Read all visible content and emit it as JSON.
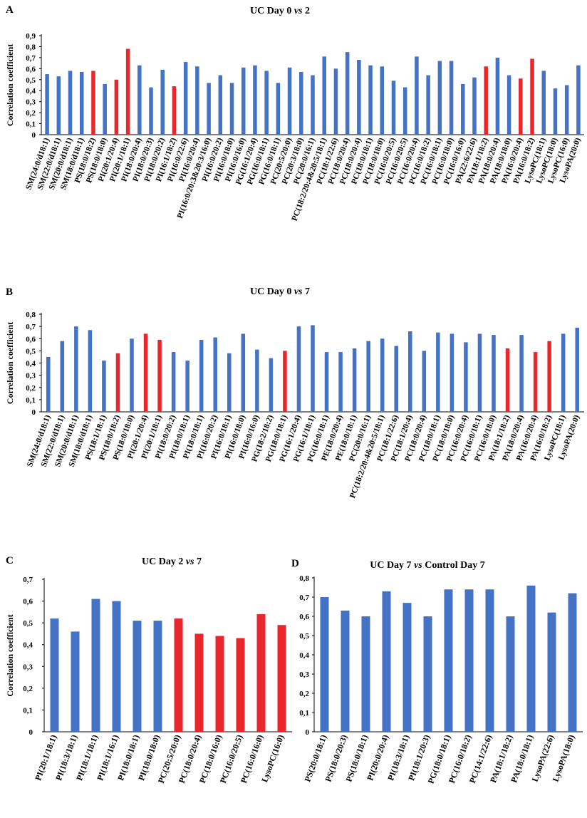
{
  "colors": {
    "blue": "#4472C4",
    "red": "#E8262B",
    "axis": "#000000"
  },
  "chart_data": [
    {
      "panel": "A",
      "type": "bar",
      "title_prefix": "UC Day 0 ",
      "title_vs": "vs",
      "title_suffix": " 2",
      "ylabel": "Correlation coefficient",
      "ylim": [
        0,
        0.9
      ],
      "yticks": [
        "0",
        "0,1",
        "0,2",
        "0,3",
        "0,4",
        "0,5",
        "0,6",
        "0,7",
        "0,8",
        "0,9"
      ],
      "bars": [
        {
          "label": "SM(24:0/d18:1)",
          "value": 0.55,
          "color": "blue"
        },
        {
          "label": "SM(22:0/d18:1)",
          "value": 0.53,
          "color": "blue"
        },
        {
          "label": "SM(20:0/d18:1)",
          "value": 0.58,
          "color": "blue"
        },
        {
          "label": "SM(18:0/d18:1)",
          "value": 0.57,
          "color": "blue"
        },
        {
          "label": "PS(18:0/18:2)",
          "value": 0.58,
          "color": "red"
        },
        {
          "label": "PS(18:0/18:0)",
          "value": 0.46,
          "color": "blue"
        },
        {
          "label": "PI(20:1/20:4)",
          "value": 0.5,
          "color": "red"
        },
        {
          "label": "PI(20:1/18:1)",
          "value": 0.78,
          "color": "red"
        },
        {
          "label": "PI(18:0/20:4)",
          "value": 0.63,
          "color": "blue"
        },
        {
          "label": "PI(18:0/20:3)",
          "value": 0.43,
          "color": "blue"
        },
        {
          "label": "PI(18:0/20:2)",
          "value": 0.59,
          "color": "blue"
        },
        {
          "label": "PI(16:1/18:2)",
          "value": 0.44,
          "color": "red"
        },
        {
          "label": "PI(16:0/22:6)",
          "value": 0.66,
          "color": "blue"
        },
        {
          "label": "PI(16:0/20:4)",
          "value": 0.62,
          "color": "blue"
        },
        {
          "label": "PI(16:0/20:3&20:3/16:0)",
          "value": 0.47,
          "color": "blue"
        },
        {
          "label": "PI(16:0/20:2)",
          "value": 0.54,
          "color": "blue"
        },
        {
          "label": "PI(16:0/18:0)",
          "value": 0.47,
          "color": "blue"
        },
        {
          "label": "PI(16:0/16:0)",
          "value": 0.61,
          "color": "blue"
        },
        {
          "label": "PG(16:1/20:4)",
          "value": 0.63,
          "color": "blue"
        },
        {
          "label": "PG(16:0/18:1)",
          "value": 0.58,
          "color": "blue"
        },
        {
          "label": "PG(16:0/18:1)",
          "value": 0.47,
          "color": "blue"
        },
        {
          "label": "PC(20:5/20:0)",
          "value": 0.61,
          "color": "blue"
        },
        {
          "label": "PC(20:3/18:0)",
          "value": 0.57,
          "color": "blue"
        },
        {
          "label": "PC(20:0/16:1)",
          "value": 0.54,
          "color": "blue"
        },
        {
          "label": "PC(18:2/20:4&20:5/18:1)",
          "value": 0.71,
          "color": "blue"
        },
        {
          "label": "PC(18:1/22:6)",
          "value": 0.6,
          "color": "blue"
        },
        {
          "label": "PC(18:0/20:4)",
          "value": 0.75,
          "color": "blue"
        },
        {
          "label": "PC(18:0/20:4)",
          "value": 0.68,
          "color": "blue"
        },
        {
          "label": "PC(18:0/18:1)",
          "value": 0.63,
          "color": "blue"
        },
        {
          "label": "PC(18:0/18:0)",
          "value": 0.62,
          "color": "blue"
        },
        {
          "label": "PC(16:0/20:5)",
          "value": 0.49,
          "color": "blue"
        },
        {
          "label": "PC(16:0/20:5)",
          "value": 0.43,
          "color": "blue"
        },
        {
          "label": "PC(16:0/20:4)",
          "value": 0.71,
          "color": "blue"
        },
        {
          "label": "PC(16:0/18:2)",
          "value": 0.54,
          "color": "blue"
        },
        {
          "label": "PC(16:0/18:1)",
          "value": 0.67,
          "color": "blue"
        },
        {
          "label": "PC(16:0/18:0)",
          "value": 0.67,
          "color": "blue"
        },
        {
          "label": "PC(16:0/16:0)",
          "value": 0.46,
          "color": "blue"
        },
        {
          "label": "PA(22:6/22:6)",
          "value": 0.52,
          "color": "blue"
        },
        {
          "label": "PA(18:1/18:2)",
          "value": 0.62,
          "color": "red"
        },
        {
          "label": "PA(18:0/20:4)",
          "value": 0.7,
          "color": "blue"
        },
        {
          "label": "PA(18:0/18:0)",
          "value": 0.54,
          "color": "blue"
        },
        {
          "label": "PA(16:0/20:4)",
          "value": 0.51,
          "color": "red"
        },
        {
          "label": "PA(16:0/18:2)",
          "value": 0.69,
          "color": "red"
        },
        {
          "label": "LysoPC(18:1)",
          "value": 0.58,
          "color": "blue"
        },
        {
          "label": "LysoPC(18:0)",
          "value": 0.42,
          "color": "blue"
        },
        {
          "label": "LysoPC(16:0)",
          "value": 0.45,
          "color": "blue"
        },
        {
          "label": "LysoPA(20:0)",
          "value": 0.63,
          "color": "blue"
        }
      ]
    },
    {
      "panel": "B",
      "type": "bar",
      "title_prefix": "UC Day 0 ",
      "title_vs": "vs",
      "title_suffix": " 7",
      "ylabel": "Correlation coefficient",
      "ylim": [
        0,
        0.8
      ],
      "yticks": [
        "0",
        "0,1",
        "0,2",
        "0,3",
        "0,4",
        "0,5",
        "0,6",
        "0,7",
        "0,8"
      ],
      "bars": [
        {
          "label": "SM(24:0/d18:1)",
          "value": 0.45,
          "color": "blue"
        },
        {
          "label": "SM(22:0/d18:1)",
          "value": 0.58,
          "color": "blue"
        },
        {
          "label": "SM(20:0/d18:1)",
          "value": 0.7,
          "color": "blue"
        },
        {
          "label": "SM(18:0/d18:1)",
          "value": 0.67,
          "color": "blue"
        },
        {
          "label": "PS(18:1/18:1)",
          "value": 0.42,
          "color": "blue"
        },
        {
          "label": "PS(18:0/18:2)",
          "value": 0.48,
          "color": "red"
        },
        {
          "label": "PS(18:0/18:0)",
          "value": 0.6,
          "color": "blue"
        },
        {
          "label": "PI(20:1/20:4)",
          "value": 0.64,
          "color": "red"
        },
        {
          "label": "PI(20:1/18:1)",
          "value": 0.59,
          "color": "red"
        },
        {
          "label": "PI(18:0/20:2)",
          "value": 0.49,
          "color": "blue"
        },
        {
          "label": "PI(18:0/18:1)",
          "value": 0.42,
          "color": "blue"
        },
        {
          "label": "PI(18:0/18:1)",
          "value": 0.59,
          "color": "blue"
        },
        {
          "label": "PI(16:0/20:2)",
          "value": 0.61,
          "color": "blue"
        },
        {
          "label": "PI(16:0/18:1)",
          "value": 0.48,
          "color": "blue"
        },
        {
          "label": "PI(16:0/18:0)",
          "value": 0.64,
          "color": "blue"
        },
        {
          "label": "PI(16:0/16:0)",
          "value": 0.51,
          "color": "blue"
        },
        {
          "label": "PG(18:2/18:2)",
          "value": 0.44,
          "color": "blue"
        },
        {
          "label": "PG(18:0/18:1)",
          "value": 0.5,
          "color": "red"
        },
        {
          "label": "PG(16:1/20:4)",
          "value": 0.7,
          "color": "blue"
        },
        {
          "label": "PG(16:1/18:1)",
          "value": 0.71,
          "color": "blue"
        },
        {
          "label": "PG(16:0/18:1)",
          "value": 0.49,
          "color": "blue"
        },
        {
          "label": "PE(18:0/20:4)",
          "value": 0.49,
          "color": "blue"
        },
        {
          "label": "PE(18:0/18:1)",
          "value": 0.52,
          "color": "blue"
        },
        {
          "label": "PC(20:0/16:1)",
          "value": 0.58,
          "color": "blue"
        },
        {
          "label": "PC(18:2/20:4&20:5/18:1)",
          "value": 0.6,
          "color": "blue"
        },
        {
          "label": "PC(18:1/22:6)",
          "value": 0.54,
          "color": "blue"
        },
        {
          "label": "PC(18:1/20:4)",
          "value": 0.66,
          "color": "blue"
        },
        {
          "label": "PC(18:0/20:4)",
          "value": 0.5,
          "color": "blue"
        },
        {
          "label": "PC(18:0/18:1)",
          "value": 0.65,
          "color": "blue"
        },
        {
          "label": "PC(18:0/18:0)",
          "value": 0.64,
          "color": "blue"
        },
        {
          "label": "PC(16:0/20:4)",
          "value": 0.57,
          "color": "blue"
        },
        {
          "label": "PC(16:0/18:1)",
          "value": 0.64,
          "color": "blue"
        },
        {
          "label": "PC(16:0/18:0)",
          "value": 0.63,
          "color": "blue"
        },
        {
          "label": "PA(18:1/18:2)",
          "value": 0.52,
          "color": "red"
        },
        {
          "label": "PA(18:0/20:4)",
          "value": 0.63,
          "color": "blue"
        },
        {
          "label": "PA(16:0/20:4)",
          "value": 0.49,
          "color": "red"
        },
        {
          "label": "PA(16:0/18:2)",
          "value": 0.58,
          "color": "red"
        },
        {
          "label": "LysoPC(18:1)",
          "value": 0.64,
          "color": "blue"
        },
        {
          "label": "LysoPA(20:0)",
          "value": 0.69,
          "color": "blue"
        }
      ]
    },
    {
      "panel": "C",
      "type": "bar",
      "title_prefix": "UC Day 2 ",
      "title_vs": "vs",
      "title_suffix": " 7",
      "ylabel": "Correlation coefficient",
      "ylim": [
        0,
        0.7
      ],
      "yticks": [
        "0",
        "0,1",
        "0,2",
        "0,3",
        "0,4",
        "0,5",
        "0,6",
        "0,7"
      ],
      "bars": [
        {
          "label": "PI(20:1/18:1)",
          "value": 0.52,
          "color": "blue"
        },
        {
          "label": "PI(18:3/18:1)",
          "value": 0.46,
          "color": "blue"
        },
        {
          "label": "PI(18:1/18:1)",
          "value": 0.61,
          "color": "blue"
        },
        {
          "label": "PI(18:1/16:1)",
          "value": 0.6,
          "color": "blue"
        },
        {
          "label": "PI(18:0/18:1)",
          "value": 0.51,
          "color": "blue"
        },
        {
          "label": "PI(18:0/18:0)",
          "value": 0.51,
          "color": "blue"
        },
        {
          "label": "PC(20:5/20:0)",
          "value": 0.52,
          "color": "red"
        },
        {
          "label": "PC(18:0/20:4)",
          "value": 0.45,
          "color": "red"
        },
        {
          "label": "PC(18:0/16:0)",
          "value": 0.44,
          "color": "red"
        },
        {
          "label": "PC(16:0/20:5)",
          "value": 0.43,
          "color": "red"
        },
        {
          "label": "PC(16:0/16:0)",
          "value": 0.54,
          "color": "red"
        },
        {
          "label": "LysoPC(16:0)",
          "value": 0.49,
          "color": "red"
        }
      ]
    },
    {
      "panel": "D",
      "type": "bar",
      "title_prefix": "UC Day 7 ",
      "title_vs": "vs",
      "title_suffix": " Control Day 7",
      "ylabel": "",
      "ylim": [
        0,
        0.8
      ],
      "yticks": [
        "0",
        "0,1",
        "0,2",
        "0,3",
        "0,4",
        "0,5",
        "0,6",
        "0,7",
        "0,8"
      ],
      "bars": [
        {
          "label": "PS(20:0/18:1)",
          "value": 0.7,
          "color": "blue"
        },
        {
          "label": "PS(18:0/20:3)",
          "value": 0.63,
          "color": "blue"
        },
        {
          "label": "PS(18:0/18:1)",
          "value": 0.6,
          "color": "blue"
        },
        {
          "label": "PI(20:0/20:4)",
          "value": 0.73,
          "color": "blue"
        },
        {
          "label": "PI(18:3/18:1)",
          "value": 0.67,
          "color": "blue"
        },
        {
          "label": "PI(18:1/20:3)",
          "value": 0.6,
          "color": "blue"
        },
        {
          "label": "PG(18:0/18:1)",
          "value": 0.74,
          "color": "blue"
        },
        {
          "label": "PC(16:0/18:2)",
          "value": 0.74,
          "color": "blue"
        },
        {
          "label": "PC(14:1/22:6)",
          "value": 0.74,
          "color": "blue"
        },
        {
          "label": "PA(18:1/18:2)",
          "value": 0.6,
          "color": "blue"
        },
        {
          "label": "PA(18:0/18:1)",
          "value": 0.76,
          "color": "blue"
        },
        {
          "label": "LysoPA(22:6)",
          "value": 0.62,
          "color": "blue"
        },
        {
          "label": "LysoPA(18:0)",
          "value": 0.72,
          "color": "blue"
        }
      ]
    }
  ]
}
